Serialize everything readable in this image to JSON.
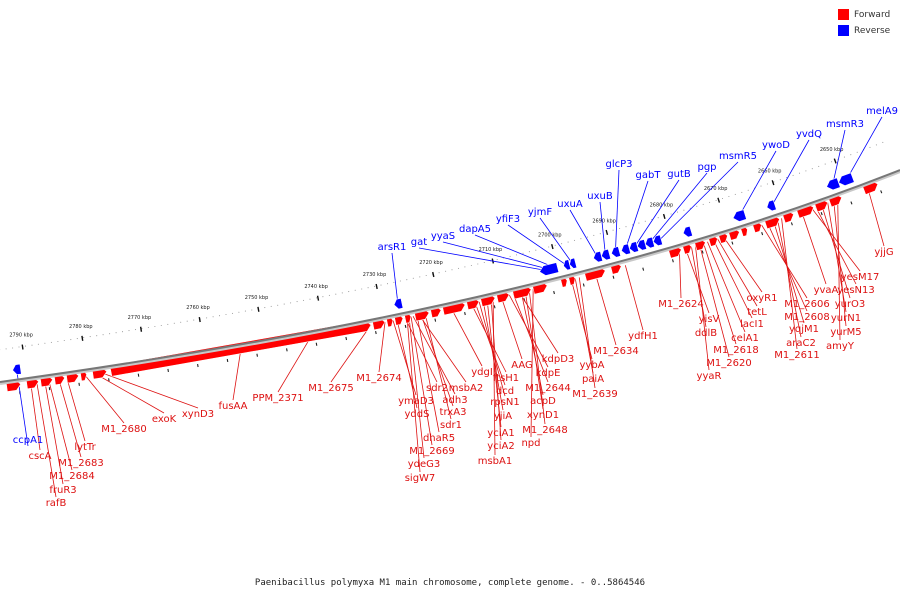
{
  "legend": {
    "forward_label": "Forward",
    "reverse_label": "Reverse",
    "forward_color": "#ff0000",
    "reverse_color": "#0000ff"
  },
  "footer": {
    "title": "Paenibacillus polymyxa M1 main chromosome, complete genome. - 0..5864546"
  },
  "scale": {
    "ticks": [
      "2650 kbp",
      "2660 kbp",
      "2670 kbp",
      "2680 kbp",
      "2690 kbp",
      "2700 kbp",
      "2710 kbp",
      "2720 kbp",
      "2730 kbp",
      "2740 kbp",
      "2750 kbp",
      "2760 kbp",
      "2770 kbp",
      "2780 kbp",
      "2790 kbp"
    ]
  },
  "genes": {
    "reverse": [
      "ccpA1",
      "arsR1",
      "gat",
      "yyaS",
      "dapA5",
      "yfiF3",
      "yjmF",
      "uxuA",
      "uxuB",
      "glcP3",
      "gabT",
      "gutB",
      "pgp",
      "msmR5",
      "ywoD",
      "yvdQ",
      "msmR3",
      "melA9"
    ],
    "forward": [
      "cscA",
      "lytTr",
      "M1_2683",
      "M1_2684",
      "fruR3",
      "rafB",
      "M1_2680",
      "exoK",
      "xynD3",
      "fusAA",
      "PPM_2371",
      "M1_2675",
      "M1_2674",
      "ymaD3",
      "yddS",
      "sdr2",
      "adh3",
      "msbA2",
      "trxA3",
      "sdr1",
      "dhaR5",
      "M1_2669",
      "ydeG3",
      "sigW7",
      "ydgI",
      "ftsH1",
      "dcd",
      "rpsN1",
      "yjiA",
      "yciA1",
      "yciA2",
      "msbA1",
      "AAG",
      "kdpE",
      "kdpD3",
      "M1_2644",
      "acpD",
      "xynD1",
      "M1_2648",
      "npd",
      "yybA",
      "paiA",
      "M1_2639",
      "M1_2634",
      "ydfH1",
      "M1_2624",
      "yisV",
      "ddlB",
      "M1_2618",
      "lacI1",
      "celA1",
      "M1_2620",
      "yyaR",
      "oxyR1",
      "tetL",
      "M1_2606",
      "yqjM1",
      "M1_2608",
      "araC2",
      "M1_2611",
      "yvaA",
      "yesM17",
      "yesN13",
      "yurO3",
      "yurN1",
      "yurM5",
      "amyY",
      "yjjG"
    ]
  }
}
